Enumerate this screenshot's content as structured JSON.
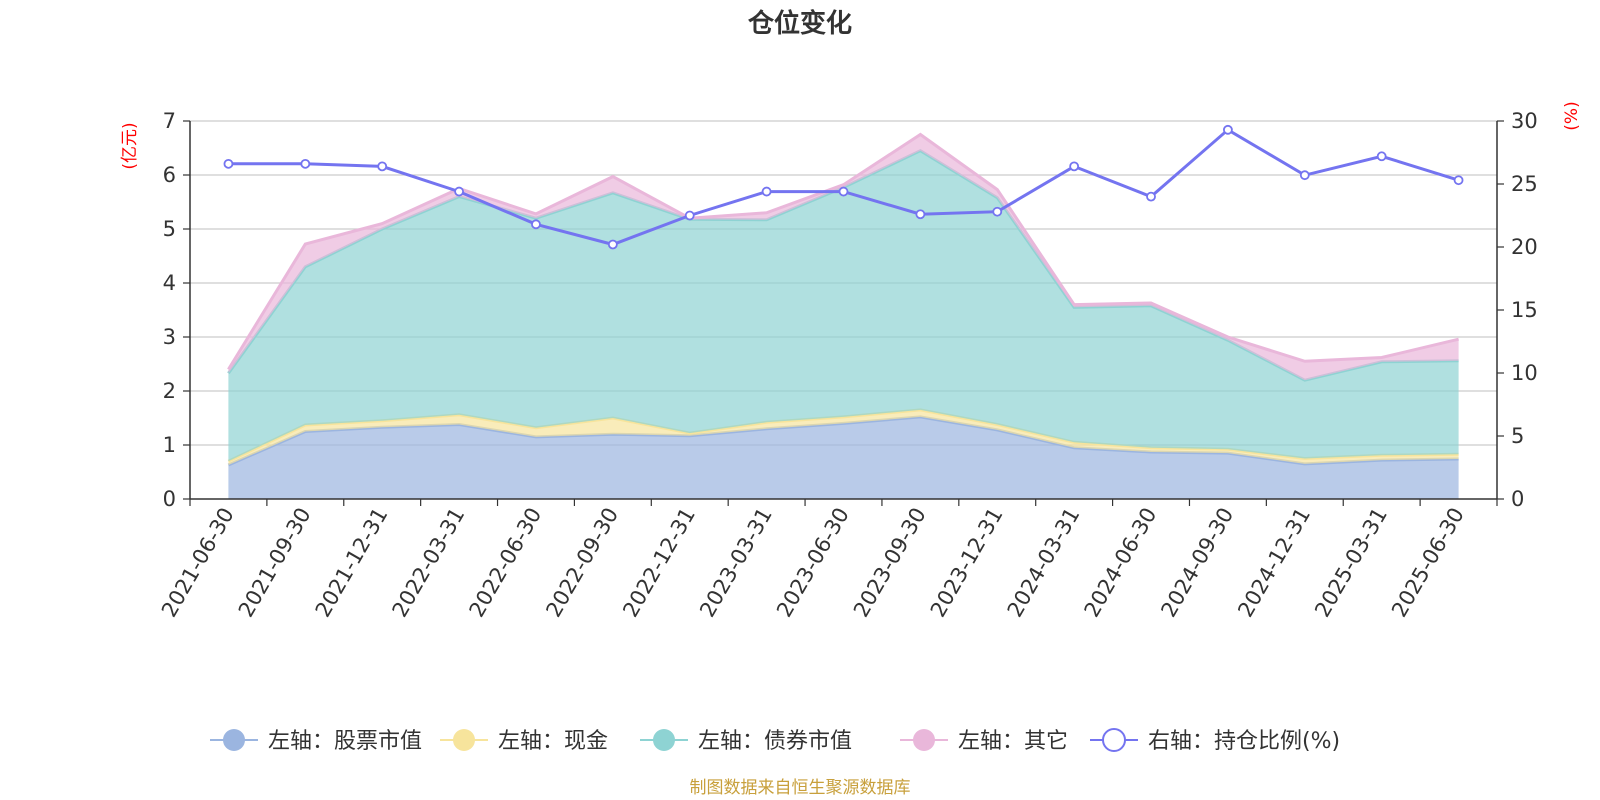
{
  "chart_data": {
    "type": "area",
    "title": "仓位变化",
    "left_unit": "(亿元)",
    "right_unit": "(%)",
    "source_note": "制图数据来自恒生聚源数据库",
    "categories": [
      "2021-06-30",
      "2021-09-30",
      "2021-12-31",
      "2022-03-31",
      "2022-06-30",
      "2022-09-30",
      "2022-12-31",
      "2023-03-31",
      "2023-06-30",
      "2023-09-30",
      "2023-12-31",
      "2024-03-31",
      "2024-06-30",
      "2024-09-30",
      "2024-12-31",
      "2025-03-31",
      "2025-06-30"
    ],
    "left_axis": {
      "min": 0,
      "max": 7,
      "ticks": [
        0,
        1,
        2,
        3,
        4,
        5,
        6,
        7
      ]
    },
    "right_axis": {
      "min": 0,
      "max": 30,
      "ticks": [
        0,
        5,
        10,
        15,
        20,
        25,
        30
      ]
    },
    "stacked_series": [
      {
        "name": "左轴：股票市值",
        "color": "#9bb5e0",
        "values": [
          0.63,
          1.25,
          1.33,
          1.38,
          1.15,
          1.2,
          1.17,
          1.3,
          1.4,
          1.52,
          1.28,
          0.95,
          0.87,
          0.85,
          0.65,
          0.72,
          0.74
        ]
      },
      {
        "name": "左轴：现金",
        "color": "#f7e49c",
        "values": [
          0.07,
          0.12,
          0.12,
          0.18,
          0.17,
          0.3,
          0.05,
          0.12,
          0.12,
          0.13,
          0.1,
          0.1,
          0.08,
          0.07,
          0.1,
          0.09,
          0.09
        ]
      },
      {
        "name": "左轴：债券市值",
        "color": "#8ed3d3",
        "values": [
          1.63,
          2.93,
          3.55,
          4.04,
          3.88,
          4.17,
          3.96,
          3.75,
          4.25,
          4.8,
          4.2,
          2.5,
          2.63,
          2.02,
          1.45,
          1.73,
          1.73
        ]
      },
      {
        "name": "左轴：其它",
        "color": "#e9b7da",
        "values": [
          0.07,
          0.42,
          0.1,
          0.15,
          0.08,
          0.3,
          0.02,
          0.13,
          0.05,
          0.3,
          0.15,
          0.05,
          0.05,
          0.06,
          0.35,
          0.08,
          0.4
        ]
      }
    ],
    "line_series": {
      "name": "右轴：持仓比例(%)",
      "color": "#7474f0",
      "values": [
        26.6,
        26.6,
        26.4,
        24.4,
        21.8,
        20.2,
        22.5,
        24.4,
        24.4,
        22.6,
        22.8,
        26.4,
        24.0,
        29.3,
        25.7,
        27.2,
        25.3
      ]
    },
    "legend_position": "bottom-center",
    "grid": true
  }
}
